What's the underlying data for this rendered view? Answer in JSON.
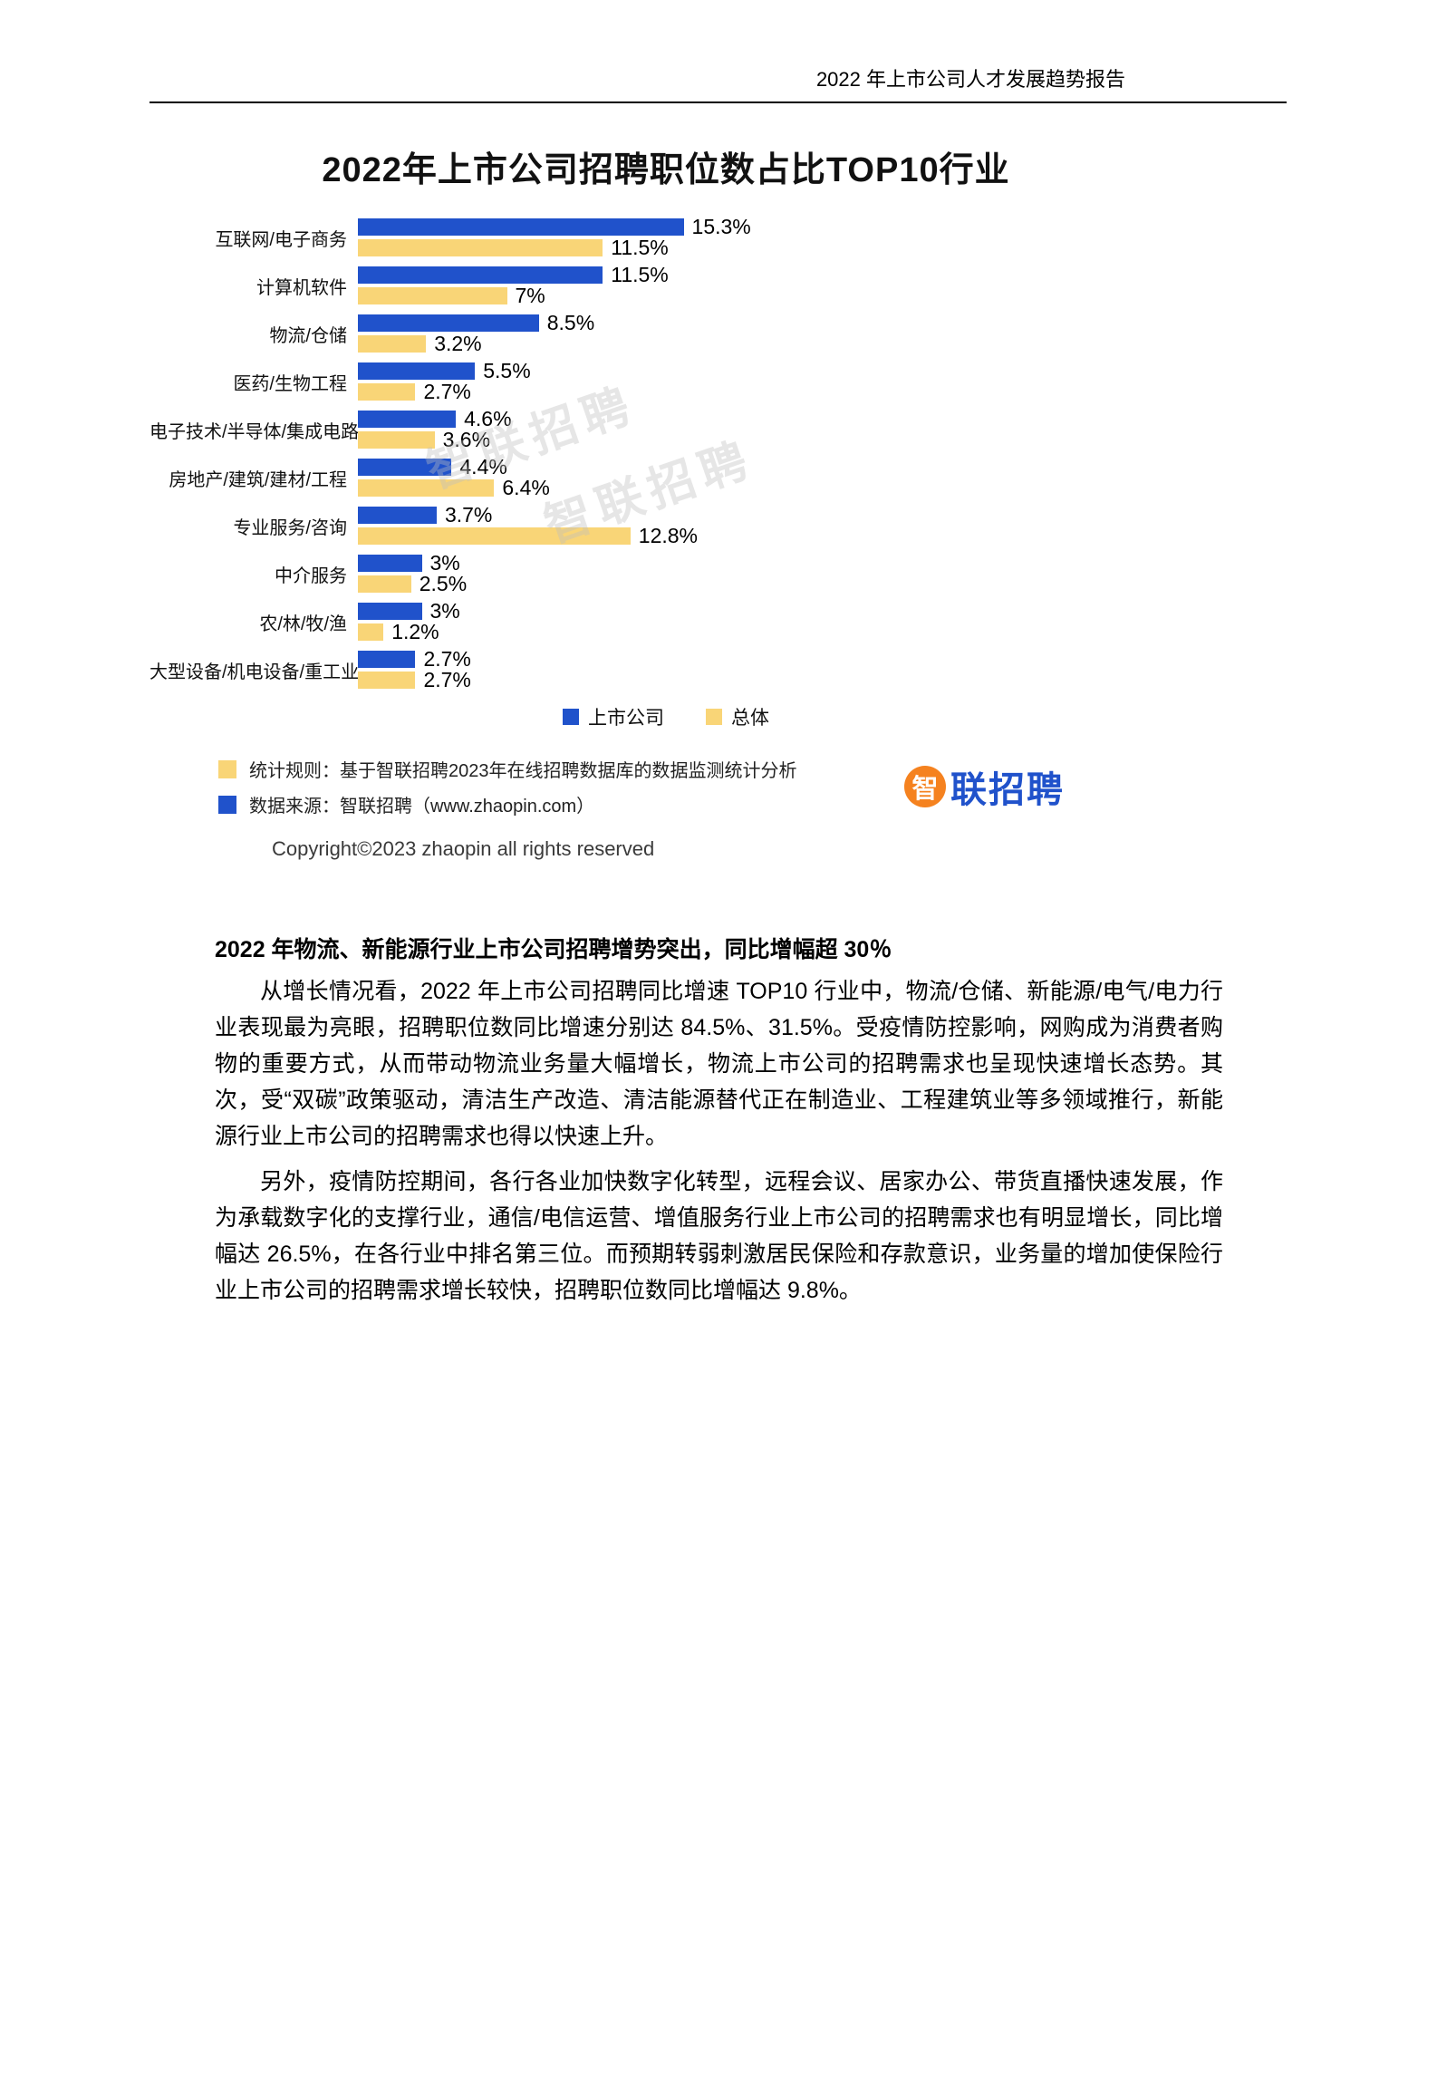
{
  "page": {
    "header_title": "2022 年上市公司人才发展趋势报告",
    "copyright": "Copyright©2023 zhaopin all rights reserved"
  },
  "chart": {
    "title": "2022年上市公司招聘职位数占比TOP10行业",
    "watermark": "智联招聘",
    "notes": [
      {
        "color": "#F9D577",
        "text": "统计规则：基于智联招聘2023年在线招聘数据库的数据监测统计分析"
      },
      {
        "color": "#2052CB",
        "text": "数据来源：智联招聘（www.zhaopin.com）"
      }
    ],
    "logo": {
      "icon_char": "智",
      "text": "联招聘",
      "orange": "#F5821F",
      "blue": "#2052CB"
    }
  },
  "chart_data": {
    "type": "bar",
    "orientation": "horizontal",
    "title": "2022年上市公司招聘职位数占比TOP10行业",
    "unit": "%",
    "categories": [
      "互联网/电子商务",
      "计算机软件",
      "物流/仓储",
      "医药/生物工程",
      "电子技术/半导体/集成电路",
      "房地产/建筑/建材/工程",
      "专业服务/咨询",
      "中介服务",
      "农/林/牧/渔",
      "大型设备/机电设备/重工业"
    ],
    "series": [
      {
        "name": "上市公司",
        "color": "#2052CB",
        "values": [
          15.3,
          11.5,
          8.5,
          5.5,
          4.6,
          4.4,
          3.7,
          3,
          3,
          2.7
        ],
        "labels": [
          "15.3%",
          "11.5%",
          "8.5%",
          "5.5%",
          "4.6%",
          "4.4%",
          "3.7%",
          "3%",
          "3%",
          "2.7%"
        ]
      },
      {
        "name": "总体",
        "color": "#F9D577",
        "values": [
          11.5,
          7,
          3.2,
          2.7,
          3.6,
          6.4,
          12.8,
          2.5,
          1.2,
          2.7
        ],
        "labels": [
          "11.5%",
          "7%",
          "3.2%",
          "2.7%",
          "3.6%",
          "6.4%",
          "12.8%",
          "2.5%",
          "1.2%",
          "2.7%"
        ]
      }
    ],
    "xlim": [
      0,
      16.5
    ],
    "legend_position": "bottom",
    "grid": false
  },
  "body": {
    "heading": "2022 年物流、新能源行业上市公司招聘增势突出，同比增幅超 30％",
    "paragraphs": [
      "从增长情况看，2022 年上市公司招聘同比增速 TOP10 行业中，物流/仓储、新能源/电气/电力行业表现最为亮眼，招聘职位数同比增速分别达 84.5%、31.5%。受疫情防控影响，网购成为消费者购物的重要方式，从而带动物流业务量大幅增长，物流上市公司的招聘需求也呈现快速增长态势。其次，受“双碳”政策驱动，清洁生产改造、清洁能源替代正在制造业、工程建筑业等多领域推行，新能源行业上市公司的招聘需求也得以快速上升。",
      "另外，疫情防控期间，各行各业加快数字化转型，远程会议、居家办公、带货直播快速发展，作为承载数字化的支撑行业，通信/电信运营、增值服务行业上市公司的招聘需求也有明显增长，同比增幅达 26.5%，在各行业中排名第三位。而预期转弱刺激居民保险和存款意识，业务量的增加使保险行业上市公司的招聘需求增长较快，招聘职位数同比增幅达 9.8%。"
    ]
  }
}
